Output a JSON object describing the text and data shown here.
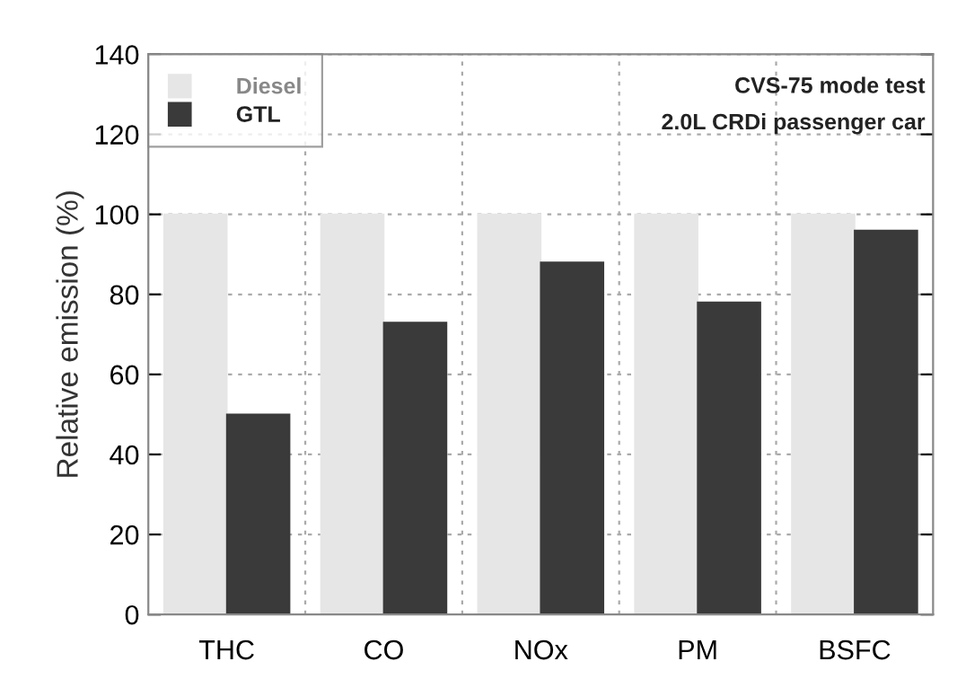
{
  "chart_data": {
    "type": "bar",
    "ylabel": "Relative emission (%)",
    "categories": [
      "THC",
      "CO",
      "NOx",
      "PM",
      "BSFC"
    ],
    "series": [
      {
        "name": "Diesel",
        "color": "#e6e6e6",
        "values": [
          100,
          100,
          100,
          100,
          100
        ]
      },
      {
        "name": "GTL",
        "color": "#3a3a3a",
        "values": [
          50,
          73,
          88,
          78,
          96
        ]
      }
    ],
    "ylim": [
      0,
      140
    ],
    "yticks": [
      0,
      20,
      40,
      60,
      80,
      100,
      120,
      140
    ],
    "grid": true,
    "legend": "top left",
    "annotations": [
      "CVS-75 mode test",
      "2.0L CRDi passenger car"
    ]
  }
}
